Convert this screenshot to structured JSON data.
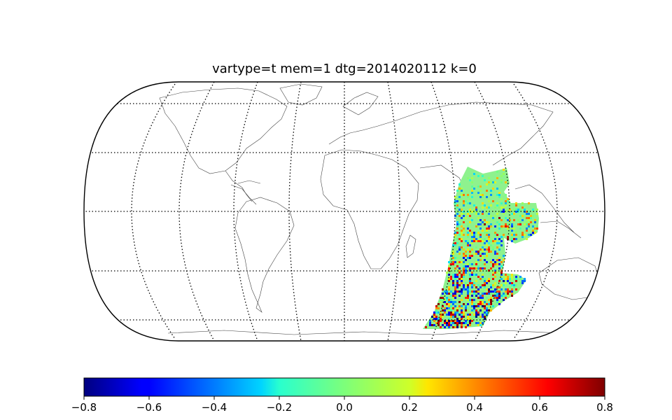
{
  "title": "vartype=t mem=1 dtg=2014020112 k=0",
  "map": {
    "projection": "robinson",
    "graticule_style": "dotted",
    "coastlines": true,
    "data_region": "Indian Ocean / Eastern Africa / Middle East sector",
    "background_value": 0.0
  },
  "colorbar": {
    "colormap": "jet",
    "vmin": -0.8,
    "vmax": 0.8,
    "orientation": "horizontal",
    "ticks": [
      {
        "value": -0.8,
        "label": "−0.8"
      },
      {
        "value": -0.6,
        "label": "−0.6"
      },
      {
        "value": -0.4,
        "label": "−0.4"
      },
      {
        "value": -0.2,
        "label": "−0.2"
      },
      {
        "value": 0.0,
        "label": "0.0"
      },
      {
        "value": 0.2,
        "label": "0.2"
      },
      {
        "value": 0.4,
        "label": "0.4"
      },
      {
        "value": 0.6,
        "label": "0.6"
      },
      {
        "value": 0.8,
        "label": "0.8"
      }
    ]
  }
}
